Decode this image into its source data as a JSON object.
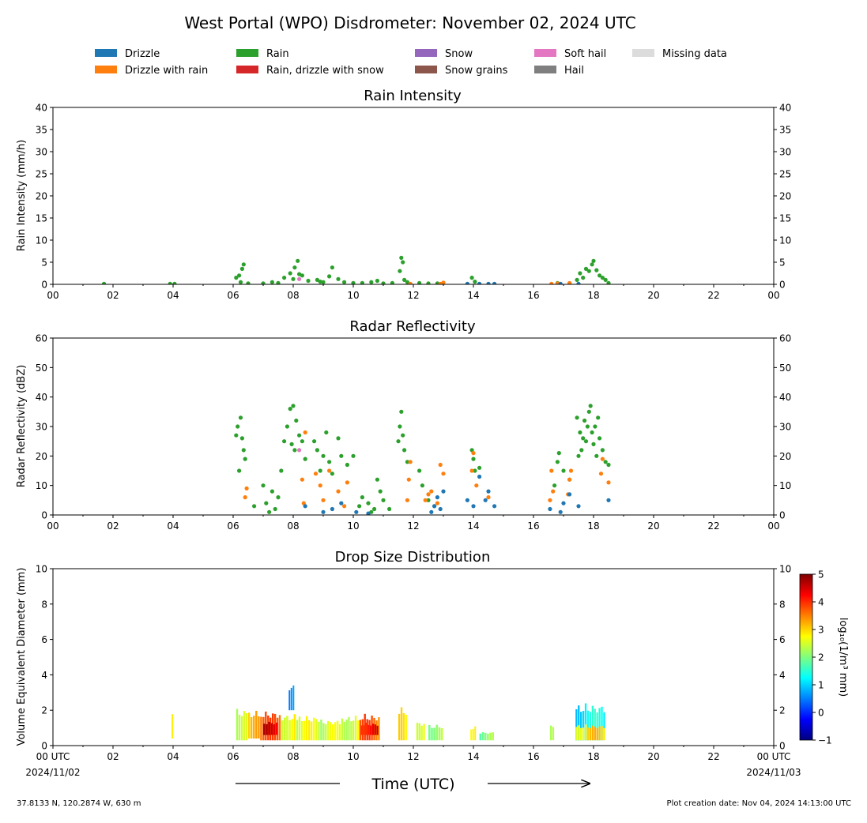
{
  "title": "West Portal (WPO) Disdrometer: November 02, 2024 UTC",
  "legend": {
    "placement": "top",
    "items": [
      {
        "label": "Drizzle",
        "color": "#1f77b4"
      },
      {
        "label": "Drizzle with rain",
        "color": "#ff7f0e"
      },
      {
        "label": "Rain",
        "color": "#2ca02c"
      },
      {
        "label": "Rain, drizzle with snow",
        "color": "#d62728"
      },
      {
        "label": "Snow",
        "color": "#9467bd"
      },
      {
        "label": "Snow grains",
        "color": "#8c564b"
      },
      {
        "label": "Soft hail",
        "color": "#e377c2"
      },
      {
        "label": "Hail",
        "color": "#7f7f7f"
      },
      {
        "label": "Missing data",
        "color": "#dcdcdc"
      }
    ]
  },
  "xaxis": {
    "label": "Time (UTC)",
    "range_hours": [
      0,
      24
    ],
    "ticks": [
      0,
      2,
      4,
      6,
      8,
      10,
      12,
      14,
      16,
      18,
      20,
      22,
      24
    ],
    "tick_labels": [
      "00",
      "02",
      "04",
      "06",
      "08",
      "10",
      "12",
      "14",
      "16",
      "18",
      "20",
      "22",
      "00"
    ],
    "bottom_tick_labels": [
      "00 UTC",
      "02",
      "04",
      "06",
      "08",
      "10",
      "12",
      "14",
      "16",
      "18",
      "20",
      "22",
      "00 UTC"
    ],
    "start_date": "2024/11/02",
    "end_date": "2024/11/03"
  },
  "footer": {
    "location": "37.8133 N, 120.2874 W, 630 m",
    "creation": "Plot creation date: Nov 04, 2024 14:13:00 UTC"
  },
  "chart_data": [
    {
      "type": "scatter",
      "title": "Rain Intensity",
      "ylabel": "Rain Intensity (mm/h)",
      "ylim": [
        0,
        40
      ],
      "yticks": [
        0,
        5,
        10,
        15,
        20,
        25,
        30,
        35,
        40
      ],
      "series": [
        {
          "name": "Rain",
          "color": "#2ca02c",
          "x": [
            1.7,
            3.9,
            4.05,
            6.1,
            6.2,
            6.25,
            6.3,
            6.35,
            6.5,
            7.0,
            7.3,
            7.5,
            7.7,
            7.9,
            8.0,
            8.05,
            8.15,
            8.2,
            8.3,
            8.5,
            8.8,
            8.9,
            9.0,
            9.2,
            9.3,
            9.5,
            9.7,
            10.0,
            10.3,
            10.6,
            10.8,
            11.0,
            11.3,
            11.55,
            11.6,
            11.65,
            11.7,
            11.8,
            12.2,
            12.5,
            12.8,
            13.95,
            14.05,
            16.8,
            17.2,
            17.45,
            17.55,
            17.65,
            17.75,
            17.85,
            17.95,
            18.0,
            18.1,
            18.2,
            18.3,
            18.4,
            18.5
          ],
          "y": [
            0.1,
            0.1,
            0.1,
            1.5,
            2.0,
            0.5,
            3.5,
            4.5,
            0.2,
            0.2,
            0.5,
            0.3,
            1.5,
            2.5,
            1.2,
            3.8,
            5.3,
            2.3,
            2.0,
            0.8,
            1.0,
            0.6,
            0.5,
            1.8,
            3.8,
            1.2,
            0.5,
            0.3,
            0.3,
            0.5,
            0.8,
            0.2,
            0.3,
            3.0,
            6.0,
            5.0,
            1.0,
            0.5,
            0.3,
            0.2,
            0.2,
            1.5,
            0.6,
            0.3,
            0.2,
            1.0,
            2.5,
            1.5,
            3.5,
            3.0,
            4.5,
            5.3,
            3.2,
            2.0,
            1.5,
            1.0,
            0.3
          ]
        },
        {
          "name": "Drizzle with rain",
          "color": "#ff7f0e",
          "x": [
            11.9,
            12.9,
            13.0,
            16.6,
            16.8,
            17.2
          ],
          "y": [
            0.1,
            0.1,
            0.4,
            0.1,
            0.2,
            0.3
          ]
        },
        {
          "name": "Drizzle",
          "color": "#1f77b4",
          "x": [
            13.8,
            14.2,
            14.5,
            14.7,
            16.9,
            17.5
          ],
          "y": [
            0.1,
            0.1,
            0.1,
            0.1,
            0.1,
            0.1
          ]
        },
        {
          "name": "Soft hail",
          "color": "#e377c2",
          "x": [
            8.2
          ],
          "y": [
            1.2
          ]
        }
      ]
    },
    {
      "type": "scatter",
      "title": "Radar Reflectivity",
      "ylabel": "Radar Reflectivity (dBZ)",
      "ylim": [
        0,
        60
      ],
      "yticks": [
        0,
        10,
        20,
        30,
        40,
        50,
        60
      ],
      "series": [
        {
          "name": "Rain",
          "color": "#2ca02c",
          "x": [
            6.1,
            6.15,
            6.2,
            6.25,
            6.3,
            6.35,
            6.4,
            6.7,
            7.0,
            7.1,
            7.2,
            7.3,
            7.4,
            7.5,
            7.6,
            7.7,
            7.8,
            7.9,
            7.95,
            8.0,
            8.05,
            8.1,
            8.2,
            8.3,
            8.4,
            8.7,
            8.8,
            8.9,
            9.0,
            9.1,
            9.2,
            9.3,
            9.5,
            9.6,
            9.8,
            10.0,
            10.2,
            10.3,
            10.5,
            10.6,
            10.7,
            10.8,
            10.9,
            11.0,
            11.2,
            11.5,
            11.55,
            11.6,
            11.65,
            11.7,
            11.8,
            12.2,
            12.3,
            12.5,
            12.7,
            13.95,
            14.0,
            14.05,
            14.2,
            16.7,
            16.8,
            16.85,
            17.0,
            17.2,
            17.45,
            17.5,
            17.55,
            17.6,
            17.65,
            17.7,
            17.75,
            17.8,
            17.85,
            17.9,
            17.95,
            18.0,
            18.05,
            18.1,
            18.15,
            18.2,
            18.3,
            18.4,
            18.5
          ],
          "y": [
            27,
            30,
            15,
            33,
            26,
            22,
            19,
            3,
            10,
            4,
            1,
            8,
            2,
            6,
            15,
            25,
            30,
            36,
            24,
            37,
            22,
            32,
            27,
            25,
            19,
            25,
            22,
            15,
            20,
            28,
            18,
            14,
            26,
            20,
            17,
            20,
            3,
            6,
            4,
            1,
            2,
            12,
            8,
            5,
            2,
            25,
            30,
            35,
            27,
            22,
            18,
            15,
            10,
            5,
            3,
            22,
            19,
            15,
            16,
            10,
            18,
            21,
            15,
            12,
            33,
            20,
            28,
            22,
            26,
            32,
            25,
            30,
            35,
            37,
            28,
            24,
            30,
            20,
            33,
            26,
            22,
            18,
            17
          ]
        },
        {
          "name": "Drizzle with rain",
          "color": "#ff7f0e",
          "x": [
            6.4,
            6.45,
            8.3,
            8.35,
            8.4,
            8.75,
            8.9,
            9.0,
            9.2,
            9.5,
            9.7,
            9.8,
            11.8,
            11.85,
            11.9,
            12.4,
            12.5,
            12.6,
            12.8,
            12.9,
            13.0,
            13.95,
            14.0,
            14.1,
            14.5,
            16.55,
            16.6,
            16.65,
            17.15,
            17.2,
            17.25,
            18.25,
            18.3,
            18.5
          ],
          "y": [
            6,
            9,
            12,
            4,
            28,
            14,
            10,
            5,
            15,
            8,
            3,
            11,
            5,
            12,
            18,
            5,
            7,
            8,
            4,
            17,
            14,
            15,
            21,
            10,
            6,
            5,
            15,
            8,
            7,
            12,
            15,
            14,
            19,
            11
          ]
        },
        {
          "name": "Drizzle",
          "color": "#1f77b4",
          "x": [
            8.4,
            9.0,
            9.3,
            9.6,
            10.1,
            10.5,
            12.6,
            12.7,
            12.8,
            12.9,
            13.0,
            13.8,
            14.0,
            14.2,
            14.4,
            14.5,
            14.7,
            16.55,
            16.9,
            17.0,
            17.2,
            17.5,
            18.5
          ],
          "y": [
            3,
            1,
            2,
            4,
            1,
            0.5,
            1,
            3,
            6,
            2,
            8,
            5,
            3,
            13,
            5,
            8,
            3,
            2,
            1,
            4,
            7,
            3,
            5
          ]
        },
        {
          "name": "Soft hail",
          "color": "#e377c2",
          "x": [
            8.2
          ],
          "y": [
            22
          ]
        }
      ]
    },
    {
      "type": "heatmap",
      "title": "Drop Size Distribution",
      "ylabel": "Volume Equivalent Diameter (mm)",
      "ylim": [
        0,
        10
      ],
      "yticks": [
        0,
        2,
        4,
        6,
        8,
        10
      ],
      "colorbar": {
        "label": "log₁₀(1/m³ mm)",
        "range": [
          -1,
          5
        ],
        "ticks": [
          "−1",
          "0",
          "1",
          "2",
          "3",
          "4",
          "5"
        ]
      },
      "blocks": [
        {
          "t0": 3.95,
          "t1": 4.02,
          "d0": 0.4,
          "d1": 2.0,
          "level": 2.5
        },
        {
          "t0": 6.1,
          "t1": 6.5,
          "d0": 0.3,
          "d1": 2.1,
          "level": 2.2
        },
        {
          "t0": 6.5,
          "t1": 6.9,
          "d0": 0.4,
          "d1": 2.0,
          "level": 3.0
        },
        {
          "t0": 6.9,
          "t1": 7.6,
          "d0": 0.3,
          "d1": 2.0,
          "level": 3.6
        },
        {
          "t0": 7.0,
          "t1": 7.5,
          "d0": 0.6,
          "d1": 1.4,
          "level": 4.4
        },
        {
          "t0": 7.6,
          "t1": 8.1,
          "d0": 0.3,
          "d1": 1.8,
          "level": 2.8
        },
        {
          "t0": 7.85,
          "t1": 8.05,
          "d0": 2.0,
          "d1": 3.5,
          "level": 0.8
        },
        {
          "t0": 8.1,
          "t1": 8.9,
          "d0": 0.3,
          "d1": 1.7,
          "level": 2.5
        },
        {
          "t0": 8.9,
          "t1": 9.6,
          "d0": 0.3,
          "d1": 1.5,
          "level": 2.4
        },
        {
          "t0": 9.6,
          "t1": 10.2,
          "d0": 0.3,
          "d1": 1.7,
          "level": 2.6
        },
        {
          "t0": 10.2,
          "t1": 10.9,
          "d0": 0.3,
          "d1": 1.8,
          "level": 3.6
        },
        {
          "t0": 10.25,
          "t1": 10.85,
          "d0": 0.6,
          "d1": 1.3,
          "level": 4.3
        },
        {
          "t0": 11.5,
          "t1": 11.8,
          "d0": 0.3,
          "d1": 2.2,
          "level": 2.7
        },
        {
          "t0": 12.1,
          "t1": 12.4,
          "d0": 0.3,
          "d1": 1.4,
          "level": 2.8
        },
        {
          "t0": 12.5,
          "t1": 13.0,
          "d0": 0.3,
          "d1": 1.2,
          "level": 2.3
        },
        {
          "t0": 13.9,
          "t1": 14.1,
          "d0": 0.3,
          "d1": 1.1,
          "level": 2.5
        },
        {
          "t0": 14.2,
          "t1": 14.7,
          "d0": 0.3,
          "d1": 0.8,
          "level": 2.0
        },
        {
          "t0": 16.55,
          "t1": 16.7,
          "d0": 0.3,
          "d1": 1.3,
          "level": 2.0
        },
        {
          "t0": 17.4,
          "t1": 18.4,
          "d0": 0.3,
          "d1": 2.4,
          "level": 1.2
        },
        {
          "t0": 17.4,
          "t1": 18.4,
          "d0": 0.3,
          "d1": 1.2,
          "level": 2.9
        }
      ]
    }
  ]
}
